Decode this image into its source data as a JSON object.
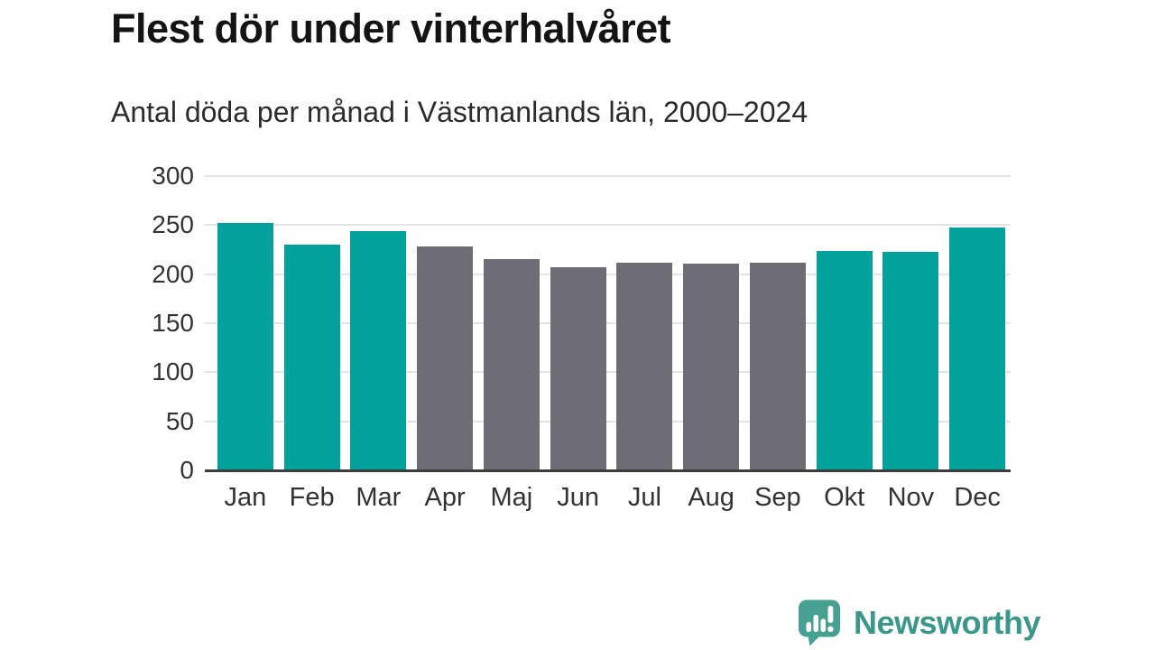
{
  "header": {
    "title": "Flest dör under vinterhalvåret",
    "subtitle": "Antal döda per månad i Västmanlands län, 2000–2024"
  },
  "chart_data": {
    "type": "bar",
    "title": "Flest dör under vinterhalvåret",
    "subtitle": "Antal döda per månad i Västmanlands län, 2000–2024",
    "categories": [
      "Jan",
      "Feb",
      "Mar",
      "Apr",
      "Maj",
      "Jun",
      "Jul",
      "Aug",
      "Sep",
      "Okt",
      "Nov",
      "Dec"
    ],
    "values": [
      252,
      230,
      244,
      228,
      215,
      207,
      212,
      211,
      212,
      224,
      223,
      248
    ],
    "bar_color_keys": [
      "winter",
      "winter",
      "winter",
      "summer",
      "summer",
      "summer",
      "summer",
      "summer",
      "summer",
      "winter",
      "winter",
      "winter"
    ],
    "colors": {
      "winter": "#00a29b",
      "summer": "#6e6d75"
    },
    "xlabel": "",
    "ylabel": "",
    "ylim": [
      0,
      300
    ],
    "yticks": [
      0,
      50,
      100,
      150,
      200,
      250,
      300
    ],
    "grid": true,
    "legend": false
  },
  "footer": {
    "logo_text": "Newsworthy",
    "logo_text_color": "#399889",
    "logo_icon_color": "#47a192"
  }
}
